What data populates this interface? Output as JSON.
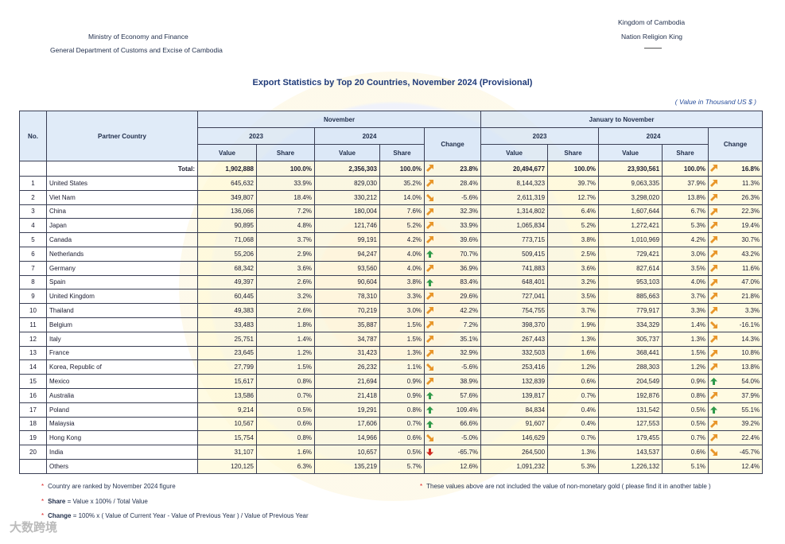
{
  "header": {
    "ministry": [
      "Ministry of Economy and Finance",
      "General Department of Customs and Excise of Cambodia"
    ],
    "kingdom": [
      "Kingdom of Cambodia",
      "Nation Religion King"
    ]
  },
  "title": "Export Statistics by Top 20 Countries, November 2024  (Provisional)",
  "unit": "( Value in Thousand US $ )",
  "table": {
    "columns": {
      "no": "No.",
      "country": "Partner Country",
      "periods": [
        "November",
        "January to November"
      ],
      "years": [
        "2023",
        "2024"
      ],
      "change": "Change",
      "value": "Value",
      "share": "Share"
    },
    "total": {
      "label": "Total:",
      "cells": [
        "1,902,888",
        "100.0%",
        "2,356,303",
        "100.0%",
        "23.8%",
        "20,494,677",
        "100.0%",
        "23,930,561",
        "100.0%",
        "16.8%"
      ]
    },
    "rows": [
      [
        "1",
        "United States",
        "645,632",
        "33.9%",
        "829,030",
        "35.2%",
        "28.4%",
        "8,144,323",
        "39.7%",
        "9,063,335",
        "37.9%",
        "11.3%"
      ],
      [
        "2",
        "Viet Nam",
        "349,807",
        "18.4%",
        "330,212",
        "14.0%",
        "-5.6%",
        "2,611,319",
        "12.7%",
        "3,298,020",
        "13.8%",
        "26.3%"
      ],
      [
        "3",
        "China",
        "136,066",
        "7.2%",
        "180,004",
        "7.6%",
        "32.3%",
        "1,314,802",
        "6.4%",
        "1,607,644",
        "6.7%",
        "22.3%"
      ],
      [
        "4",
        "Japan",
        "90,895",
        "4.8%",
        "121,746",
        "5.2%",
        "33.9%",
        "1,065,834",
        "5.2%",
        "1,272,421",
        "5.3%",
        "19.4%"
      ],
      [
        "5",
        "Canada",
        "71,068",
        "3.7%",
        "99,191",
        "4.2%",
        "39.6%",
        "773,715",
        "3.8%",
        "1,010,969",
        "4.2%",
        "30.7%"
      ],
      [
        "6",
        "Netherlands",
        "55,206",
        "2.9%",
        "94,247",
        "4.0%",
        "70.7%",
        "509,415",
        "2.5%",
        "729,421",
        "3.0%",
        "43.2%"
      ],
      [
        "7",
        "Germany",
        "68,342",
        "3.6%",
        "93,560",
        "4.0%",
        "36.9%",
        "741,883",
        "3.6%",
        "827,614",
        "3.5%",
        "11.6%"
      ],
      [
        "8",
        "Spain",
        "49,397",
        "2.6%",
        "90,604",
        "3.8%",
        "83.4%",
        "648,401",
        "3.2%",
        "953,103",
        "4.0%",
        "47.0%"
      ],
      [
        "9",
        "United Kingdom",
        "60,445",
        "3.2%",
        "78,310",
        "3.3%",
        "29.6%",
        "727,041",
        "3.5%",
        "885,663",
        "3.7%",
        "21.8%"
      ],
      [
        "10",
        "Thailand",
        "49,383",
        "2.6%",
        "70,219",
        "3.0%",
        "42.2%",
        "754,755",
        "3.7%",
        "779,917",
        "3.3%",
        "3.3%"
      ],
      [
        "11",
        "Belgium",
        "33,483",
        "1.8%",
        "35,887",
        "1.5%",
        "7.2%",
        "398,370",
        "1.9%",
        "334,329",
        "1.4%",
        "-16.1%"
      ],
      [
        "12",
        "Italy",
        "25,751",
        "1.4%",
        "34,787",
        "1.5%",
        "35.1%",
        "267,443",
        "1.3%",
        "305,737",
        "1.3%",
        "14.3%"
      ],
      [
        "13",
        "France",
        "23,645",
        "1.2%",
        "31,423",
        "1.3%",
        "32.9%",
        "332,503",
        "1.6%",
        "368,441",
        "1.5%",
        "10.8%"
      ],
      [
        "14",
        "Korea, Republic of",
        "27,799",
        "1.5%",
        "26,232",
        "1.1%",
        "-5.6%",
        "253,416",
        "1.2%",
        "288,303",
        "1.2%",
        "13.8%"
      ],
      [
        "15",
        "Mexico",
        "15,617",
        "0.8%",
        "21,694",
        "0.9%",
        "38.9%",
        "132,839",
        "0.6%",
        "204,549",
        "0.9%",
        "54.0%"
      ],
      [
        "16",
        "Australia",
        "13,586",
        "0.7%",
        "21,418",
        "0.9%",
        "57.6%",
        "139,817",
        "0.7%",
        "192,876",
        "0.8%",
        "37.9%"
      ],
      [
        "17",
        "Poland",
        "9,214",
        "0.5%",
        "19,291",
        "0.8%",
        "109.4%",
        "84,834",
        "0.4%",
        "131,542",
        "0.5%",
        "55.1%"
      ],
      [
        "18",
        "Malaysia",
        "10,567",
        "0.6%",
        "17,606",
        "0.7%",
        "66.6%",
        "91,607",
        "0.4%",
        "127,553",
        "0.5%",
        "39.2%"
      ],
      [
        "19",
        "Hong Kong",
        "15,754",
        "0.8%",
        "14,966",
        "0.6%",
        "-5.0%",
        "146,629",
        "0.7%",
        "179,455",
        "0.7%",
        "22.4%"
      ],
      [
        "20",
        "India",
        "31,107",
        "1.6%",
        "10,657",
        "0.5%",
        "-65.7%",
        "264,500",
        "1.3%",
        "143,537",
        "0.6%",
        "-45.7%"
      ]
    ],
    "others": {
      "label": "Others",
      "cells": [
        "120,125",
        "6.3%",
        "135,219",
        "5.7%",
        "12.6%",
        "1,091,232",
        "5.3%",
        "1,226,132",
        "5.1%",
        "12.4%"
      ]
    }
  },
  "notes": {
    "ranking": "Country are ranked by November 2024 figure",
    "gold": "These values above are not included the value of non-monetary gold ( please find it in another table )",
    "share": {
      "term": "Share",
      "text": "=  Value x 100% / Total Value"
    },
    "change": {
      "term": "Change",
      "text": "= 100% x ( Value of Current Year - Value of Previous Year )  / Value of Previous Year"
    }
  },
  "watermark": "大数跨境"
}
